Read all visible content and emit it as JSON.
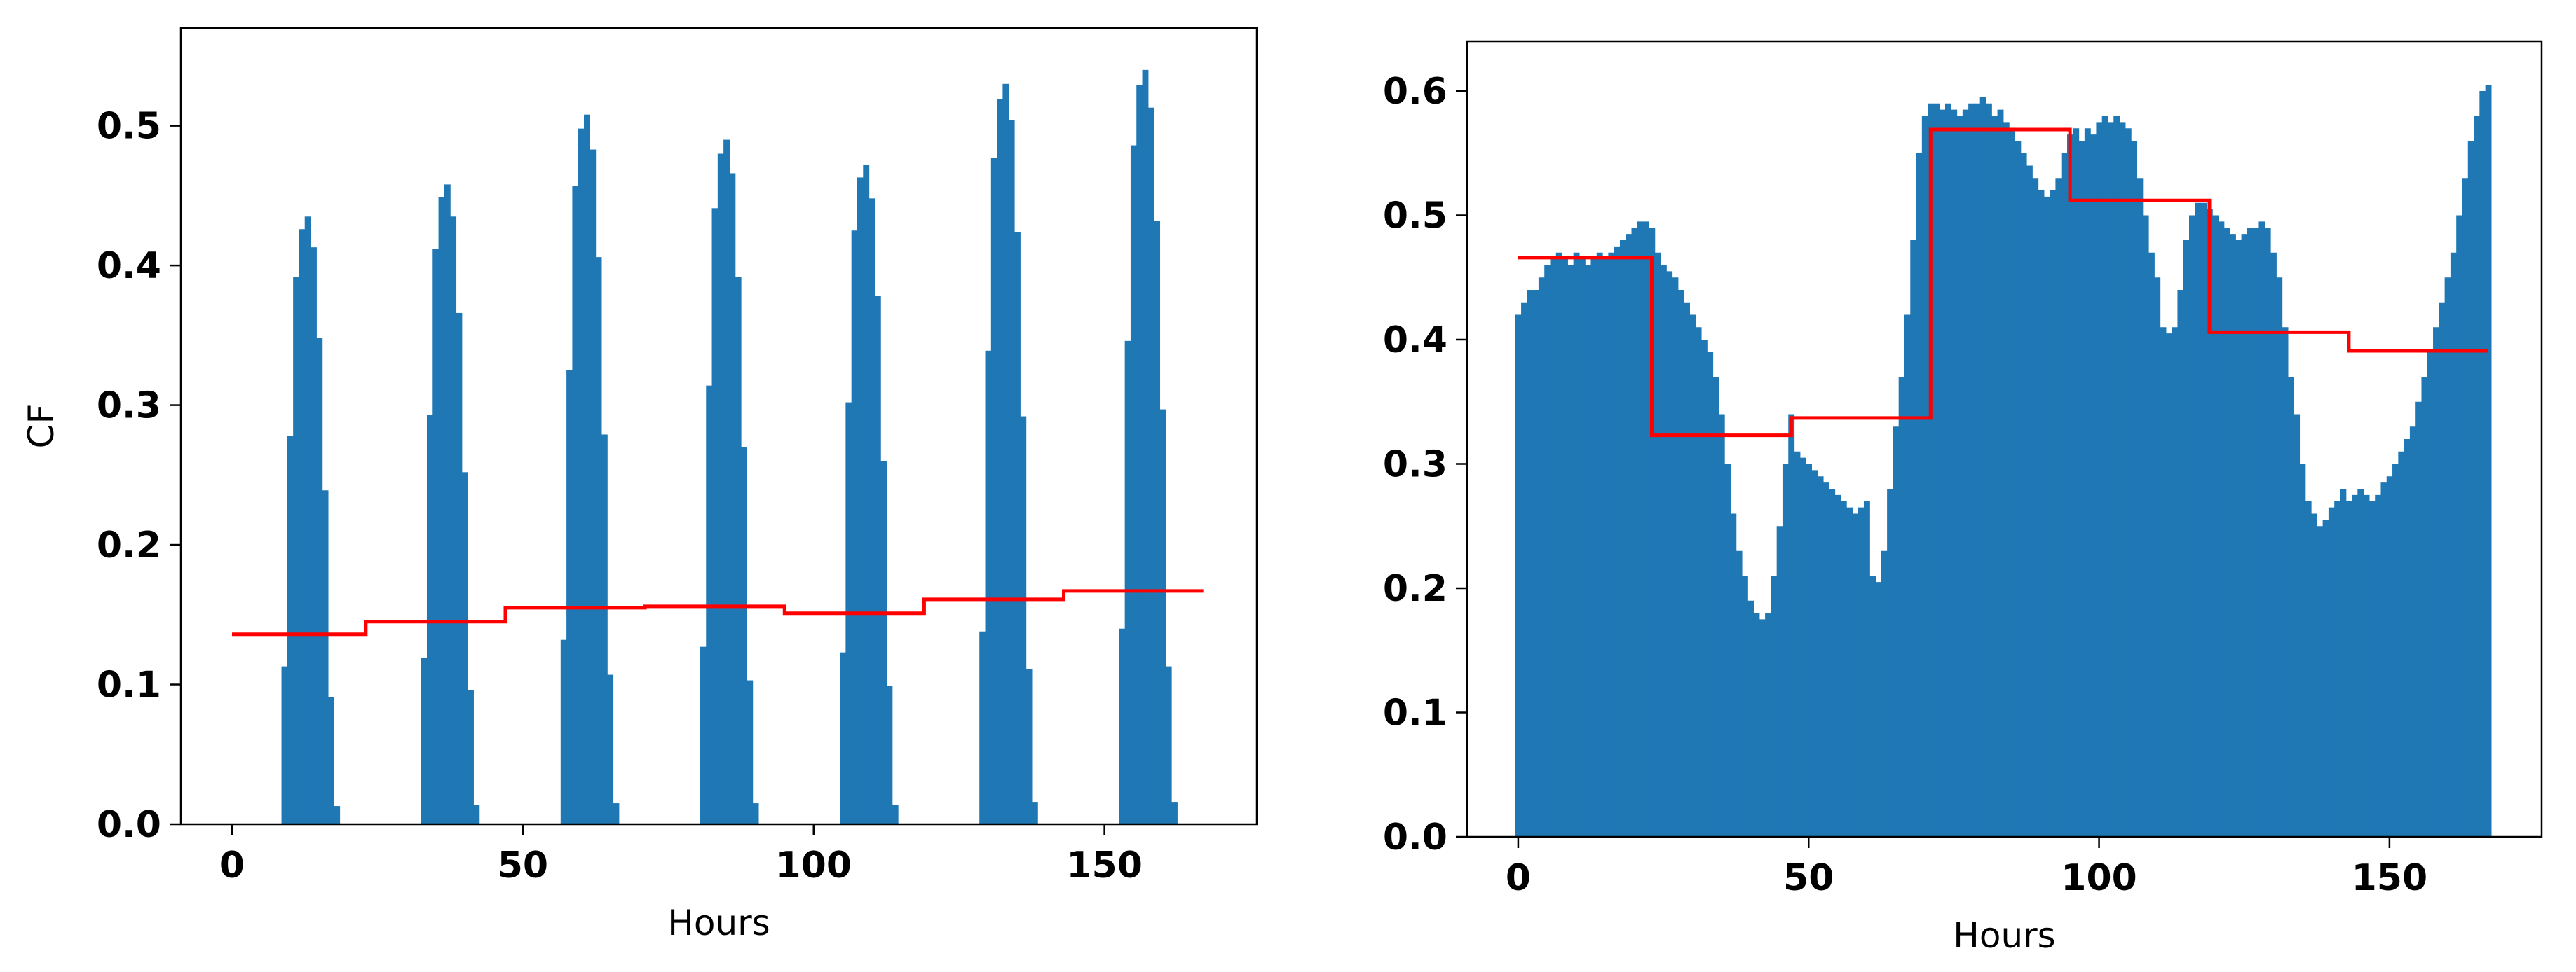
{
  "chart_data": [
    {
      "type": "bar",
      "xlabel": "Hours",
      "ylabel": "CF",
      "xlim": [
        -8.8,
        176.2
      ],
      "xticks": [
        0,
        50,
        100,
        150
      ],
      "ylim": [
        0,
        0.57
      ],
      "yticks": [
        {
          "value": 0,
          "label": "0.0"
        },
        0.1,
        0.2,
        0.3,
        0.4,
        0.5
      ],
      "color": "#1f77b4",
      "values": [
        0,
        0,
        0,
        0,
        0,
        0,
        0,
        0,
        0,
        0.113,
        0.278,
        0.392,
        0.426,
        0.435,
        0.413,
        0.348,
        0.239,
        0.091,
        0.013,
        0,
        0,
        0,
        0,
        0,
        0,
        0,
        0,
        0,
        0,
        0,
        0,
        0,
        0,
        0.119,
        0.293,
        0.412,
        0.449,
        0.458,
        0.435,
        0.366,
        0.252,
        0.096,
        0.014,
        0,
        0,
        0,
        0,
        0,
        0,
        0,
        0,
        0,
        0,
        0,
        0,
        0,
        0,
        0.132,
        0.325,
        0.457,
        0.498,
        0.508,
        0.483,
        0.406,
        0.279,
        0.107,
        0.015,
        0,
        0,
        0,
        0,
        0,
        0,
        0,
        0,
        0,
        0,
        0,
        0,
        0,
        0,
        0.127,
        0.314,
        0.441,
        0.48,
        0.49,
        0.466,
        0.392,
        0.27,
        0.103,
        0.015,
        0,
        0,
        0,
        0,
        0,
        0,
        0,
        0,
        0,
        0,
        0,
        0,
        0,
        0,
        0.123,
        0.302,
        0.425,
        0.463,
        0.472,
        0.448,
        0.378,
        0.26,
        0.099,
        0.014,
        0,
        0,
        0,
        0,
        0,
        0,
        0,
        0,
        0,
        0,
        0,
        0,
        0,
        0,
        0.138,
        0.339,
        0.477,
        0.519,
        0.53,
        0.504,
        0.424,
        0.292,
        0.111,
        0.016,
        0,
        0,
        0,
        0,
        0,
        0,
        0,
        0,
        0,
        0,
        0,
        0,
        0,
        0,
        0.14,
        0.346,
        0.486,
        0.529,
        0.54,
        0.513,
        0.432,
        0.297,
        0.113,
        0.016,
        0,
        0,
        0,
        0,
        0
      ],
      "average_color": "#ff0000",
      "average_values": [
        0.136,
        0.145,
        0.155,
        0.156,
        0.151,
        0.161,
        0.167
      ]
    },
    {
      "type": "bar",
      "xlabel": "Hours",
      "xlim": [
        -8.8,
        176.2
      ],
      "xticks": [
        0,
        50,
        100,
        150
      ],
      "ylim": [
        0,
        0.64
      ],
      "yticks": [
        {
          "value": 0,
          "label": "0.0"
        },
        0.1,
        0.2,
        0.3,
        0.4,
        0.5,
        0.6
      ],
      "color": "#1f77b4",
      "values": [
        0.42,
        0.43,
        0.44,
        0.44,
        0.45,
        0.46,
        0.465,
        0.47,
        0.465,
        0.46,
        0.47,
        0.465,
        0.46,
        0.465,
        0.47,
        0.465,
        0.47,
        0.475,
        0.48,
        0.485,
        0.49,
        0.495,
        0.495,
        0.49,
        0.47,
        0.46,
        0.455,
        0.45,
        0.44,
        0.43,
        0.42,
        0.41,
        0.4,
        0.39,
        0.37,
        0.34,
        0.3,
        0.26,
        0.23,
        0.21,
        0.19,
        0.18,
        0.175,
        0.18,
        0.21,
        0.25,
        0.3,
        0.34,
        0.31,
        0.305,
        0.3,
        0.295,
        0.29,
        0.285,
        0.28,
        0.275,
        0.27,
        0.265,
        0.26,
        0.265,
        0.27,
        0.21,
        0.205,
        0.23,
        0.28,
        0.33,
        0.37,
        0.42,
        0.48,
        0.55,
        0.58,
        0.59,
        0.59,
        0.585,
        0.59,
        0.585,
        0.58,
        0.585,
        0.59,
        0.59,
        0.595,
        0.59,
        0.58,
        0.585,
        0.575,
        0.57,
        0.56,
        0.55,
        0.54,
        0.53,
        0.52,
        0.515,
        0.52,
        0.53,
        0.55,
        0.565,
        0.57,
        0.56,
        0.57,
        0.565,
        0.575,
        0.58,
        0.575,
        0.58,
        0.575,
        0.57,
        0.56,
        0.53,
        0.5,
        0.47,
        0.45,
        0.41,
        0.405,
        0.41,
        0.44,
        0.48,
        0.5,
        0.51,
        0.51,
        0.505,
        0.5,
        0.495,
        0.49,
        0.485,
        0.48,
        0.485,
        0.49,
        0.49,
        0.495,
        0.49,
        0.47,
        0.45,
        0.41,
        0.37,
        0.34,
        0.3,
        0.27,
        0.26,
        0.25,
        0.255,
        0.265,
        0.27,
        0.28,
        0.27,
        0.275,
        0.28,
        0.275,
        0.27,
        0.275,
        0.285,
        0.29,
        0.3,
        0.31,
        0.32,
        0.33,
        0.35,
        0.37,
        0.39,
        0.41,
        0.43,
        0.45,
        0.47,
        0.5,
        0.53,
        0.56,
        0.58,
        0.6,
        0.605
      ],
      "average_color": "#ff0000",
      "average_values": [
        0.466,
        0.323,
        0.337,
        0.569,
        0.512,
        0.406,
        0.391
      ]
    }
  ]
}
